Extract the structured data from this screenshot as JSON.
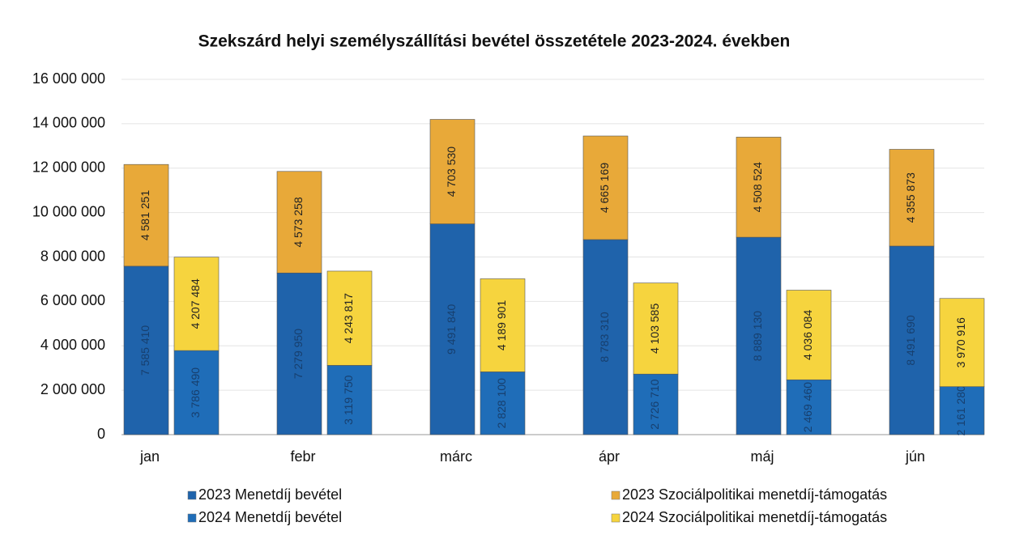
{
  "chart_data": {
    "type": "stacked_grouped_bar",
    "title": "Szekszárd helyi személyszállítási bevétel összetétele 2023-2024. években",
    "categories": [
      "jan",
      "febr",
      "márc",
      "ápr",
      "máj",
      "jún"
    ],
    "series": [
      {
        "name": "2023 Menetdíj bevétel",
        "color": "#1f63ab",
        "stack": 0,
        "values": [
          7585410,
          7279950,
          9491840,
          8783310,
          8889130,
          8491690
        ],
        "value_labels": [
          "7 585 410",
          "7 279 950",
          "9 491 840",
          "8 783 310",
          "8 889 130",
          "8 491 690"
        ]
      },
      {
        "name": "2024 Menetdíj bevétel",
        "color": "#1f6db8",
        "stack": 1,
        "values": [
          3786490,
          3119750,
          2828100,
          2726710,
          2469460,
          2161280
        ],
        "value_labels": [
          "3 786 490",
          "3 119 750",
          "2 828 100",
          "2 726 710",
          "2 469 460",
          "2 161 280"
        ]
      },
      {
        "name": "2023 Szociálpolitikai menetdíj-támogatás",
        "color": "#e8a939",
        "stack": 0,
        "values": [
          4581251,
          4573258,
          4703530,
          4665169,
          4508524,
          4355873
        ],
        "value_labels": [
          "4 581 251",
          "4 573 258",
          "4 703 530",
          "4 665 169",
          "4 508 524",
          "4 355 873"
        ]
      },
      {
        "name": "2024 Szociálpolitikai menetdíj-támogatás",
        "color": "#f6d43e",
        "stack": 1,
        "values": [
          4207484,
          4243817,
          4189901,
          4103585,
          4036084,
          3970916
        ],
        "value_labels": [
          "4 207 484",
          "4 243 817",
          "4 189 901",
          "4 103 585",
          "4 036 084",
          "3 970 916"
        ]
      }
    ],
    "ylim": [
      0,
      16000000
    ],
    "yticks": [
      0,
      {
        "value": 2000000,
        "label": "2 000 000"
      },
      {
        "value": 4000000,
        "label": "4 000 000"
      },
      {
        "value": 6000000,
        "label": "6 000 000"
      },
      {
        "value": 8000000,
        "label": "8 000 000"
      },
      {
        "value": 10000000,
        "label": "10 000 000"
      },
      {
        "value": 12000000,
        "label": "12 000 000"
      },
      {
        "value": 14000000,
        "label": "14 000 000"
      },
      {
        "value": 16000000,
        "label": "16 000 000"
      }
    ],
    "grid": true
  }
}
